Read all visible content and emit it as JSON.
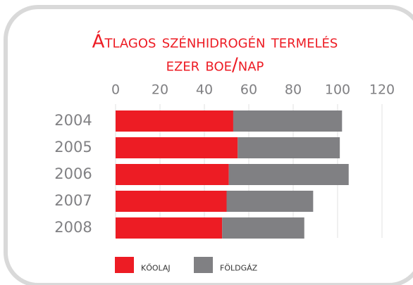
{
  "chart_data": {
    "type": "stacked_barh",
    "title": "Átlagos szénhidrogén termelés",
    "subtitle": "ezer boe/nap",
    "categories": [
      "2004",
      "2005",
      "2006",
      "2007",
      "2008"
    ],
    "series": [
      {
        "name": "kőolaj",
        "color": "#ed1c24",
        "values": [
          53,
          55,
          51,
          50,
          48
        ]
      },
      {
        "name": "földgáz",
        "color": "#808083",
        "values": [
          49,
          46,
          54,
          39,
          37
        ]
      }
    ],
    "xlim": [
      0,
      120
    ],
    "xticks": [
      0,
      20,
      40,
      60,
      80,
      100,
      120
    ],
    "grid": true,
    "legend": "bottom"
  }
}
